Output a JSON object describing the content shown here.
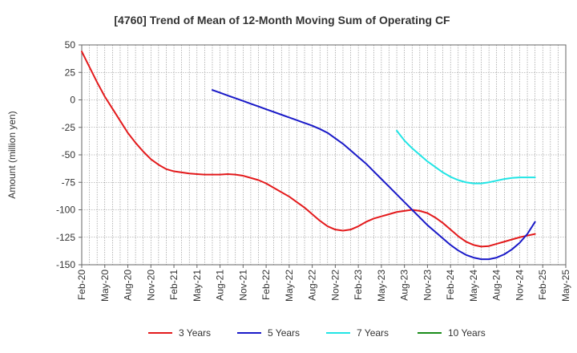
{
  "chart_data": {
    "type": "line",
    "title": "[4760]  Trend of Mean of 12-Month Moving Sum of Operating CF",
    "xlabel": "",
    "ylabel": "Amount (million yen)",
    "ylim": [
      -150,
      50
    ],
    "yticks": [
      50,
      25,
      0,
      -25,
      -50,
      -75,
      -100,
      -125,
      -150
    ],
    "xticks": [
      "Feb-20",
      "May-20",
      "Aug-20",
      "Nov-20",
      "Feb-21",
      "May-21",
      "Aug-21",
      "Nov-21",
      "Feb-22",
      "May-22",
      "Aug-22",
      "Nov-22",
      "Feb-23",
      "May-23",
      "Aug-23",
      "Nov-23",
      "Feb-24",
      "May-24",
      "Aug-24",
      "Nov-24",
      "Feb-25",
      "May-25"
    ],
    "x_start": "Feb-20",
    "x_end": "May-25",
    "grid": true,
    "legend_position": "bottom",
    "series": [
      {
        "name": "3 Years",
        "color": "#e31a1c",
        "start": "Feb-20",
        "values": [
          44,
          30,
          16,
          3,
          -8,
          -19,
          -30,
          -39,
          -47,
          -54,
          -59,
          -63,
          -65,
          -66,
          -67,
          -67.5,
          -68,
          -68,
          -68,
          -67.5,
          -68,
          -69,
          -71,
          -73,
          -76,
          -80,
          -84,
          -88,
          -93,
          -98,
          -104,
          -110,
          -115,
          -118,
          -119,
          -118,
          -115,
          -111,
          -108,
          -106,
          -104,
          -102,
          -101,
          -100,
          -101,
          -103,
          -107,
          -112,
          -118,
          -124,
          -129,
          -132,
          -133.5,
          -133,
          -131,
          -129,
          -127,
          -125,
          -123.5,
          -122
        ]
      },
      {
        "name": "5 Years",
        "color": "#1a1ac8",
        "start": "Jul-21",
        "values": [
          9,
          6.5,
          4,
          1.5,
          -1,
          -3.5,
          -6,
          -8.5,
          -11,
          -13.5,
          -16,
          -18.5,
          -21,
          -23.5,
          -26.5,
          -30,
          -35,
          -40,
          -46,
          -52,
          -58,
          -65,
          -72,
          -79,
          -86,
          -93,
          -100,
          -107,
          -114,
          -120,
          -126,
          -132,
          -137,
          -141,
          -143.5,
          -145,
          -145,
          -143.5,
          -140.5,
          -136,
          -130,
          -122,
          -111
        ]
      },
      {
        "name": "7 Years",
        "color": "#22e5e5",
        "start": "Jul-23",
        "values": [
          -28,
          -37,
          -44,
          -50,
          -56,
          -61,
          -66,
          -70,
          -73,
          -75,
          -76,
          -76,
          -75,
          -73.5,
          -72,
          -71,
          -70.5,
          -70.5,
          -70.5
        ]
      },
      {
        "name": "10 Years",
        "color": "#1a8c1a",
        "start": "Feb-25",
        "values": []
      }
    ]
  }
}
